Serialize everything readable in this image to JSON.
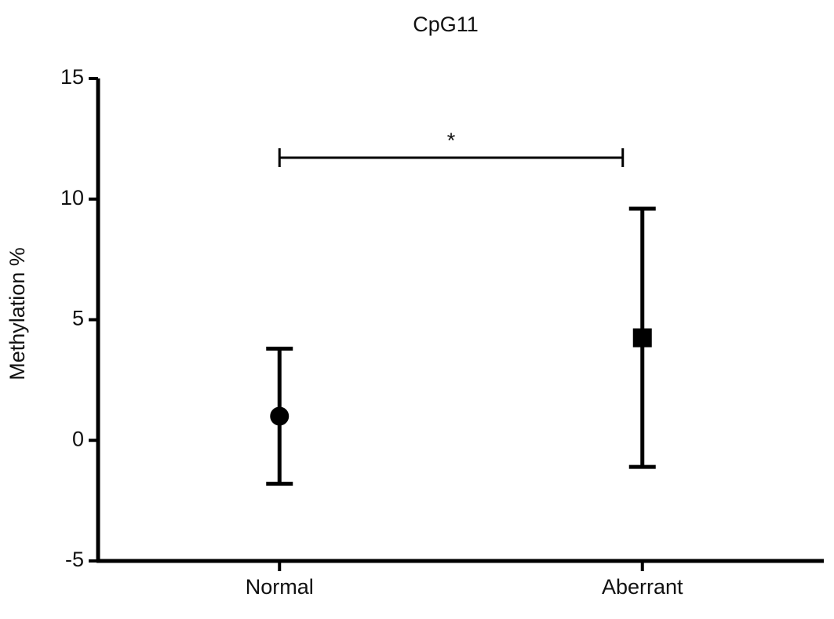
{
  "chart_data": {
    "type": "errorbar",
    "title": "CpG11",
    "y_label": "Methylation %",
    "categories": [
      "Normal",
      "Aberrant"
    ],
    "values": [
      1.0,
      4.25
    ],
    "errors": [
      2.8,
      5.35
    ],
    "markers": [
      "circle",
      "square"
    ],
    "color": "#000000",
    "annotation": "*",
    "ylim": [
      -5,
      15
    ],
    "yticks": [
      -5,
      0,
      5,
      10,
      15
    ]
  }
}
